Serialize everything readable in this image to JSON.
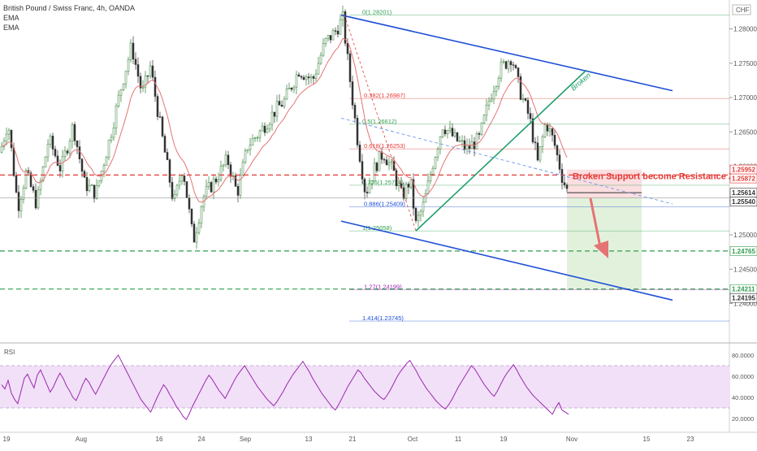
{
  "header": {
    "title": "British Pound / Swiss Franc, 4h, OANDA",
    "ema1": "EMA",
    "ema2": "EMA"
  },
  "currency": "CHF",
  "colors": {
    "up": "#2f7d32",
    "down": "#333333",
    "ema": "#e57373",
    "channel": "#1e4fd6",
    "trend": "#1e9e6a",
    "resistance": "#e53935",
    "target": "#2e9e4f",
    "rsi": "#9c27b0",
    "rsi_band": "#f1e0f7",
    "zone_red": "#fadadd",
    "zone_green": "#dff0d8"
  },
  "chart_data": {
    "type": "candlestick",
    "ylim": [
      1.2345,
      1.2835
    ],
    "y_ticks": [
      "1.28000",
      "1.27500",
      "1.27000",
      "1.26500",
      "1.26000",
      "1.25500",
      "1.25000",
      "1.24500",
      "1.24000"
    ],
    "x_ticks": [
      "19",
      "Aug",
      "16",
      "24",
      "Sep",
      "13",
      "21",
      "Oct",
      "11",
      "19",
      "Nov",
      "15",
      "23"
    ],
    "price_labels": [
      {
        "text": "1.25952",
        "value": 1.25952,
        "bg": "#ffffff",
        "fg": "#e53935"
      },
      {
        "text": "1.25872",
        "value": 1.25872,
        "bg": "#ffffff",
        "fg": "#e53935"
      },
      {
        "text": "1.25614",
        "value": 1.25614,
        "bg": "#ffffff",
        "fg": "#333333"
      },
      {
        "text": "1.25540",
        "value": 1.2554,
        "bg": "#ffffff",
        "fg": "#333333"
      },
      {
        "text": "1.24765",
        "value": 1.24765,
        "bg": "#ffffff",
        "fg": "#2e9e4f"
      },
      {
        "text": "1.24211",
        "value": 1.24211,
        "bg": "#ffffff",
        "fg": "#2e9e4f"
      },
      {
        "text": "1.24195",
        "value": 1.24195,
        "bg": "#ffffff",
        "fg": "#333333"
      }
    ],
    "fib_levels": [
      {
        "label": "0(1.28201)",
        "value": 1.28201,
        "color": "#2e9e4f"
      },
      {
        "label": "0.382(1.26987)",
        "value": 1.26987,
        "color": "#e53935"
      },
      {
        "label": "0.5(1.26612)",
        "value": 1.26612,
        "color": "#2e9e4f"
      },
      {
        "label": "0.618(1.26253)",
        "value": 1.26253,
        "color": "#e53935"
      },
      {
        "label": "0.786(1.25723)",
        "value": 1.25723,
        "color": "#2e9e4f"
      },
      {
        "label": "0.886(1.25409)",
        "value": 1.25409,
        "color": "#1e4fd6"
      },
      {
        "label": "1(1.25058)",
        "value": 1.25058,
        "color": "#2e9e4f"
      },
      {
        "label": "1.27(1.24199)",
        "value": 1.24199,
        "color": "#9c27b0"
      },
      {
        "label": "1.414(1.23745)",
        "value": 1.23745,
        "color": "#1e4fd6"
      }
    ],
    "resistance_level": 1.25872,
    "target_levels": [
      1.24765,
      1.24211
    ],
    "annotations": {
      "zone_label": "Broken Support become Resistance Zone",
      "broken": "Broken"
    },
    "rsi": {
      "label": "RSI",
      "ylim": [
        10,
        90
      ],
      "band": [
        30,
        70
      ],
      "ticks": [
        "80.0000",
        "60.0000",
        "40.0000",
        "20.0000"
      ],
      "values": [
        52,
        48,
        56,
        44,
        38,
        34,
        46,
        58,
        62,
        55,
        49,
        61,
        66,
        59,
        52,
        45,
        50,
        57,
        63,
        58,
        51,
        46,
        40,
        37,
        44,
        52,
        58,
        54,
        48,
        43,
        49,
        55,
        61,
        67,
        72,
        76,
        80,
        74,
        68,
        62,
        56,
        50,
        44,
        38,
        34,
        30,
        26,
        33,
        40,
        46,
        52,
        48,
        42,
        37,
        31,
        27,
        22,
        19,
        25,
        32,
        38,
        44,
        50,
        56,
        61,
        57,
        52,
        47,
        43,
        39,
        45,
        51,
        57,
        62,
        66,
        70,
        65,
        60,
        55,
        50,
        46,
        42,
        38,
        35,
        32,
        36,
        41,
        46,
        52,
        57,
        62,
        66,
        70,
        74,
        69,
        64,
        58,
        53,
        48,
        43,
        39,
        35,
        31,
        28,
        33,
        39,
        45,
        51,
        56,
        61,
        66,
        63,
        58,
        54,
        50,
        46,
        43,
        40,
        38,
        42,
        47,
        53,
        59,
        64,
        68,
        72,
        75,
        70,
        65,
        59,
        54,
        49,
        45,
        41,
        37,
        34,
        31,
        29,
        33,
        38,
        44,
        50,
        55,
        60,
        65,
        70,
        67,
        62,
        57,
        52,
        48,
        44,
        41,
        46,
        52,
        58,
        63,
        67,
        71,
        66,
        60,
        55,
        50,
        46,
        42,
        39,
        36,
        33,
        30,
        27,
        24,
        30,
        35,
        28,
        26,
        24
      ]
    },
    "candles_note": "Approximate 4h GBP/CHF price path, Jul-Nov"
  }
}
